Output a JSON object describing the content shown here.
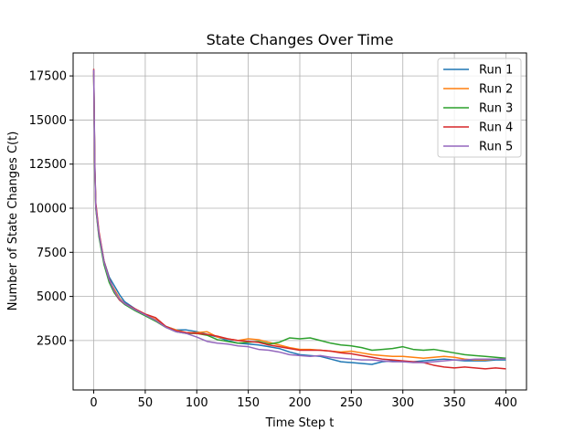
{
  "chart_data": {
    "type": "line",
    "title": "State Changes Over Time",
    "xlabel": "Time Step t",
    "ylabel": "Number of State Changes C(t)",
    "xlim": [
      -20,
      420
    ],
    "ylim": [
      -300,
      18800
    ],
    "xticks": [
      0,
      50,
      100,
      150,
      200,
      250,
      300,
      350,
      400
    ],
    "yticks": [
      2500,
      5000,
      7500,
      10000,
      12500,
      15000,
      17500
    ],
    "grid": true,
    "legend_position": "top-right",
    "series": [
      {
        "name": "Run 1",
        "color": "#1f77b4",
        "x": [
          0,
          1,
          2,
          5,
          10,
          15,
          20,
          25,
          30,
          40,
          50,
          60,
          70,
          80,
          90,
          100,
          110,
          120,
          130,
          140,
          150,
          160,
          170,
          180,
          190,
          200,
          210,
          220,
          230,
          240,
          250,
          260,
          270,
          280,
          290,
          300,
          310,
          320,
          330,
          340,
          350,
          360,
          370,
          380,
          390,
          400
        ],
        "values": [
          17800,
          12500,
          10200,
          8600,
          7000,
          6100,
          5600,
          5100,
          4700,
          4300,
          3950,
          3650,
          3300,
          3100,
          3100,
          3000,
          2850,
          2700,
          2500,
          2350,
          2300,
          2250,
          2150,
          2050,
          1850,
          1700,
          1650,
          1600,
          1450,
          1300,
          1250,
          1200,
          1150,
          1300,
          1350,
          1300,
          1300,
          1350,
          1400,
          1450,
          1400,
          1350,
          1350,
          1350,
          1400,
          1400
        ]
      },
      {
        "name": "Run 2",
        "color": "#ff7f0e",
        "x": [
          0,
          1,
          2,
          5,
          10,
          15,
          20,
          25,
          30,
          40,
          50,
          60,
          70,
          80,
          90,
          100,
          110,
          120,
          130,
          140,
          150,
          160,
          170,
          180,
          190,
          200,
          210,
          220,
          230,
          240,
          250,
          260,
          270,
          280,
          290,
          300,
          310,
          320,
          330,
          340,
          350,
          360,
          370,
          380,
          390,
          400
        ],
        "values": [
          17700,
          12300,
          10000,
          8500,
          6900,
          5900,
          5400,
          4900,
          4600,
          4250,
          3950,
          3700,
          3300,
          3100,
          2950,
          2950,
          3000,
          2700,
          2600,
          2500,
          2600,
          2550,
          2400,
          2250,
          2100,
          2000,
          2000,
          1950,
          1900,
          1850,
          1900,
          1800,
          1700,
          1650,
          1600,
          1600,
          1550,
          1500,
          1550,
          1600,
          1550,
          1450,
          1400,
          1400,
          1450,
          1450
        ]
      },
      {
        "name": "Run 3",
        "color": "#2ca02c",
        "x": [
          0,
          1,
          2,
          5,
          10,
          15,
          20,
          25,
          30,
          40,
          50,
          60,
          70,
          80,
          90,
          100,
          110,
          120,
          130,
          140,
          150,
          160,
          170,
          180,
          190,
          200,
          210,
          220,
          230,
          240,
          250,
          260,
          270,
          280,
          290,
          300,
          310,
          320,
          330,
          340,
          350,
          360,
          370,
          380,
          390,
          400
        ],
        "values": [
          17600,
          12200,
          10000,
          8400,
          6800,
          5800,
          5200,
          4800,
          4550,
          4200,
          3900,
          3600,
          3250,
          3000,
          2900,
          2900,
          2800,
          2550,
          2450,
          2350,
          2400,
          2450,
          2300,
          2400,
          2650,
          2600,
          2650,
          2500,
          2350,
          2250,
          2200,
          2100,
          1950,
          2000,
          2050,
          2150,
          2000,
          1950,
          2000,
          1900,
          1800,
          1700,
          1650,
          1600,
          1550,
          1500
        ]
      },
      {
        "name": "Run 4",
        "color": "#d62728",
        "x": [
          0,
          1,
          2,
          5,
          10,
          15,
          20,
          25,
          30,
          40,
          50,
          60,
          70,
          80,
          90,
          100,
          110,
          120,
          130,
          140,
          150,
          160,
          170,
          180,
          190,
          200,
          210,
          220,
          230,
          240,
          250,
          260,
          270,
          280,
          290,
          300,
          310,
          320,
          330,
          340,
          350,
          360,
          370,
          380,
          390,
          400
        ],
        "values": [
          17900,
          12600,
          10300,
          8700,
          7000,
          6000,
          5300,
          4800,
          4600,
          4300,
          4000,
          3800,
          3300,
          3050,
          2950,
          2900,
          2850,
          2750,
          2600,
          2500,
          2450,
          2400,
          2250,
          2150,
          2050,
          1950,
          1950,
          1950,
          1900,
          1800,
          1750,
          1650,
          1550,
          1450,
          1400,
          1350,
          1300,
          1250,
          1100,
          1000,
          950,
          1000,
          950,
          900,
          950,
          900
        ]
      },
      {
        "name": "Run 5",
        "color": "#9467bd",
        "x": [
          0,
          1,
          2,
          5,
          10,
          15,
          20,
          25,
          30,
          40,
          50,
          60,
          70,
          80,
          90,
          100,
          110,
          120,
          130,
          140,
          150,
          160,
          170,
          180,
          190,
          200,
          210,
          220,
          230,
          240,
          250,
          260,
          270,
          280,
          290,
          300,
          310,
          320,
          330,
          340,
          350,
          360,
          370,
          380,
          390,
          400
        ],
        "values": [
          17850,
          12400,
          10100,
          8550,
          6950,
          5950,
          5300,
          4850,
          4600,
          4250,
          3950,
          3650,
          3250,
          3000,
          2900,
          2700,
          2450,
          2350,
          2300,
          2200,
          2150,
          2000,
          1950,
          1850,
          1700,
          1650,
          1600,
          1650,
          1550,
          1500,
          1450,
          1400,
          1400,
          1350,
          1300,
          1300,
          1250,
          1250,
          1300,
          1350,
          1400,
          1400,
          1450,
          1450,
          1450,
          1450
        ]
      }
    ]
  }
}
